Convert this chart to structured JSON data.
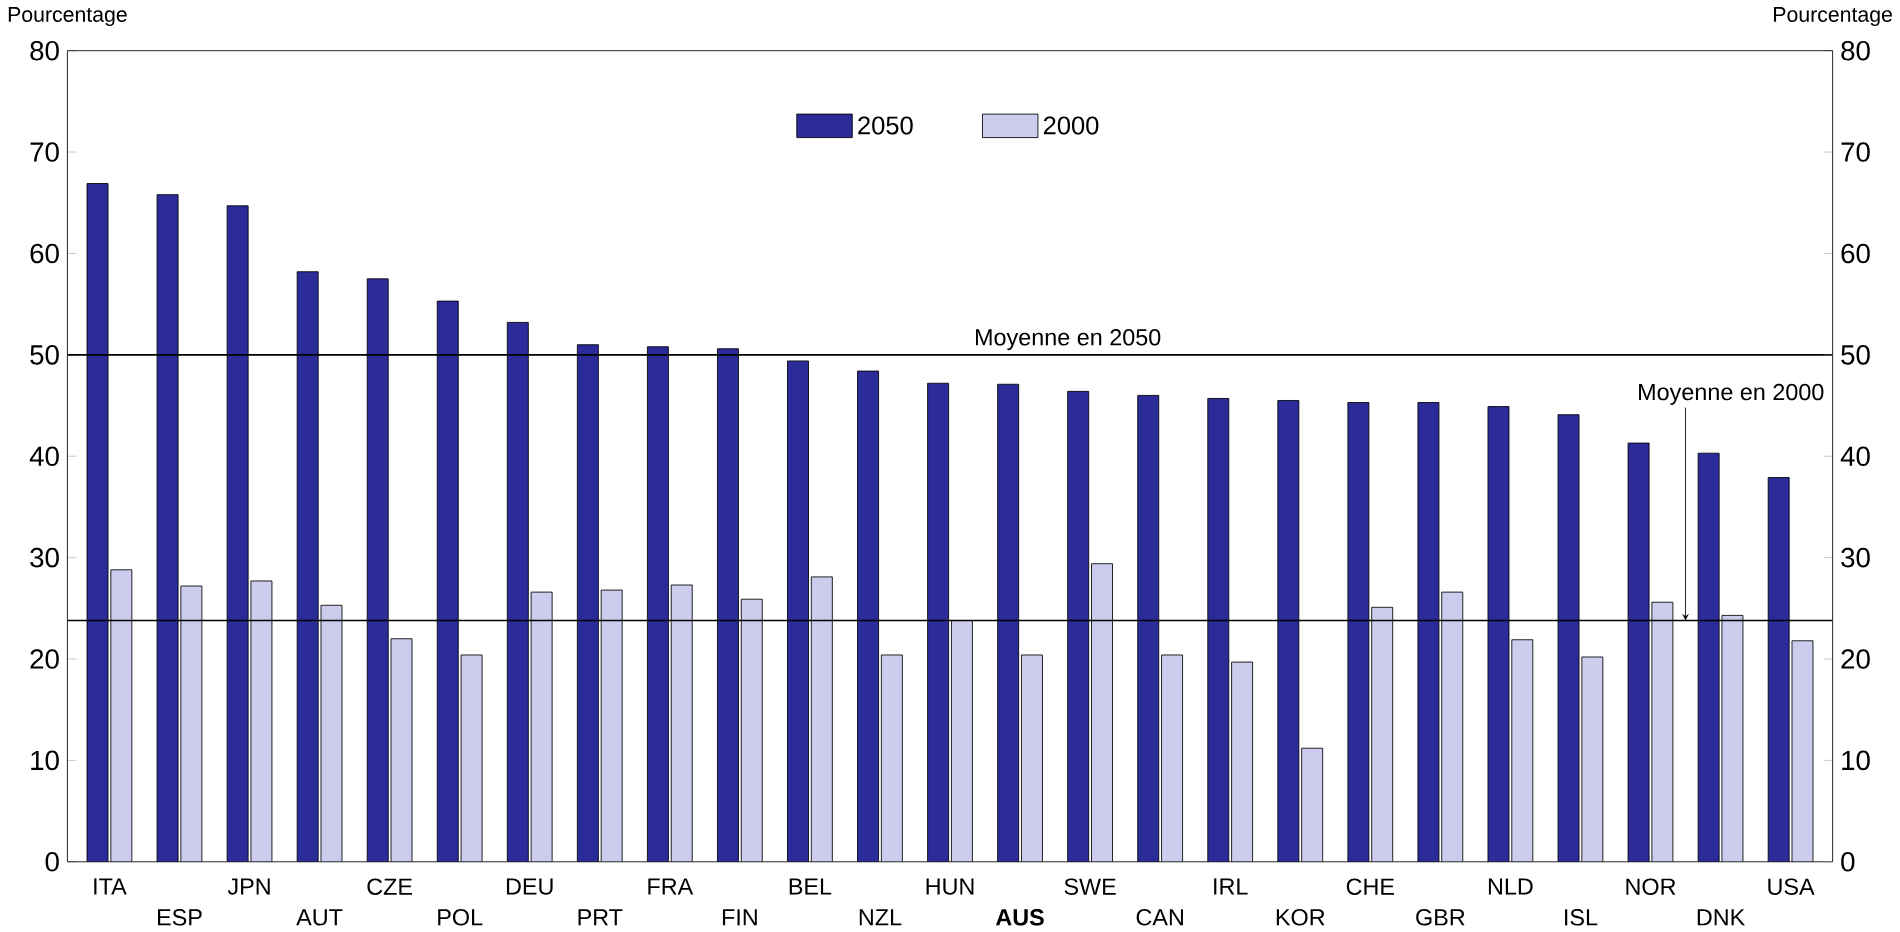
{
  "chart_data": {
    "type": "bar",
    "ylabel": "Pourcentage",
    "y2label": "Pourcentage",
    "categories": [
      "ITA",
      "ESP",
      "JPN",
      "AUT",
      "CZE",
      "POL",
      "DEU",
      "PRT",
      "FRA",
      "FIN",
      "BEL",
      "NZL",
      "HUN",
      "**AUS**",
      "SWE",
      "CAN",
      "IRL",
      "KOR",
      "CHE",
      "GBR",
      "NLD",
      "ISL",
      "NOR",
      "DNK",
      "USA"
    ],
    "series": [
      {
        "name": "2050",
        "color": "#2b2b9a",
        "values": [
          66.9,
          65.8,
          64.7,
          58.2,
          57.5,
          55.3,
          53.2,
          51.0,
          50.8,
          50.6,
          49.4,
          48.4,
          47.2,
          47.1,
          46.4,
          46.0,
          45.7,
          45.5,
          45.3,
          45.3,
          44.9,
          44.1,
          41.3,
          40.3,
          37.9
        ]
      },
      {
        "name": "2000",
        "color": "#ccccee",
        "values": [
          28.8,
          27.2,
          27.7,
          25.3,
          22.0,
          20.4,
          26.6,
          26.8,
          27.3,
          25.9,
          28.1,
          20.4,
          23.8,
          20.4,
          29.4,
          20.4,
          19.7,
          11.2,
          25.1,
          26.6,
          21.9,
          20.2,
          25.6,
          24.3,
          21.8
        ]
      }
    ],
    "ylim": [
      0,
      80
    ],
    "yticks": [
      0,
      10,
      20,
      30,
      40,
      50,
      60,
      70,
      80
    ],
    "y2lim": [
      0,
      80
    ],
    "y2ticks": [
      0,
      10,
      20,
      30,
      40,
      50,
      60,
      70,
      80
    ],
    "ref_lines": [
      {
        "axis": "y",
        "value": 50,
        "label": "Moyenne en 2050",
        "color": "#000000"
      },
      {
        "axis": "y",
        "value": 23.8,
        "label": "Moyenne en 2000",
        "color": "#000000"
      }
    ],
    "legend": "top"
  }
}
